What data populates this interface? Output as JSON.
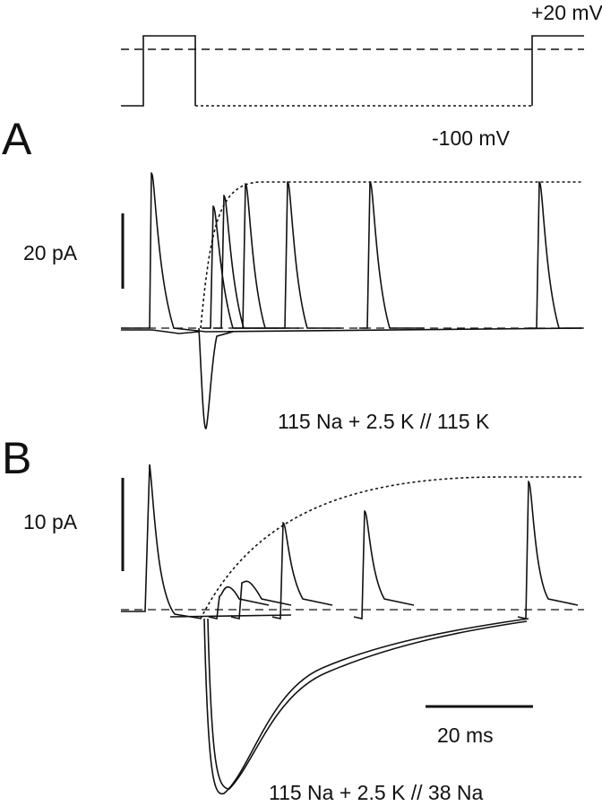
{
  "voltage_protocol": {
    "high_label": "+20 mV",
    "low_label": "-100 mV"
  },
  "panels": [
    {
      "label": "A",
      "scale_label": "20 pA",
      "solution": "115 Na + 2.5 K // 115 K"
    },
    {
      "label": "B",
      "scale_label": "10 pA",
      "time_scale": "20 ms",
      "solution": "115 Na + 2.5 K // 38 Na"
    }
  ]
}
